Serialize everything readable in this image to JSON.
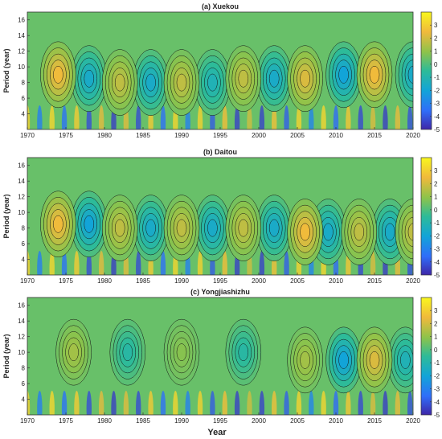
{
  "chart_data": {
    "type": "heatmap",
    "xlabel": "Year",
    "ylabel": "Period (year)",
    "xlim": [
      1970,
      2020
    ],
    "ylim": [
      2,
      17
    ],
    "x_ticks": [
      "1970",
      "1975",
      "1980",
      "1985",
      "1990",
      "1995",
      "2000",
      "2005",
      "2010",
      "2015",
      "2020"
    ],
    "y_ticks": [
      "4",
      "6",
      "8",
      "10",
      "12",
      "14",
      "16"
    ],
    "colorbar": {
      "range": [
        -5,
        4
      ],
      "ticks": [
        "3",
        "2",
        "1",
        "0",
        "-1",
        "-2",
        "-3",
        "-4",
        "-5"
      ],
      "colormap": [
        "#3e26a8",
        "#2f6ef9",
        "#12a4d8",
        "#2ebb98",
        "#8ec34a",
        "#f0b93c",
        "#f9f71e"
      ]
    },
    "contours": "black",
    "panels": [
      {
        "title": "(a) Xuekou",
        "high_centers": [
          {
            "year": 1974,
            "period": 9,
            "value": 3
          },
          {
            "year": 1982,
            "period": 8,
            "value": 2
          },
          {
            "year": 1990,
            "period": 8,
            "value": 2
          },
          {
            "year": 1998,
            "period": 8.5,
            "value": 2
          },
          {
            "year": 2006,
            "period": 8.5,
            "value": 2.5
          },
          {
            "year": 2015,
            "period": 9,
            "value": 3
          }
        ],
        "low_centers": [
          {
            "year": 1978,
            "period": 8.5,
            "value": -2
          },
          {
            "year": 1986,
            "period": 8,
            "value": -2
          },
          {
            "year": 1994,
            "period": 8,
            "value": -1.5
          },
          {
            "year": 2002,
            "period": 8.5,
            "value": -2
          },
          {
            "year": 2011,
            "period": 9,
            "value": -2.5
          },
          {
            "year": 2020,
            "period": 9,
            "value": -2
          }
        ]
      },
      {
        "title": "(b) Daitou",
        "high_centers": [
          {
            "year": 1974,
            "period": 8.5,
            "value": 3
          },
          {
            "year": 1982,
            "period": 8,
            "value": 2
          },
          {
            "year": 1990,
            "period": 8,
            "value": 2
          },
          {
            "year": 1998,
            "period": 8,
            "value": 2
          },
          {
            "year": 2006,
            "period": 7.5,
            "value": 3
          },
          {
            "year": 2013,
            "period": 7.5,
            "value": 2
          },
          {
            "year": 2020,
            "period": 7.5,
            "value": 2
          }
        ],
        "low_centers": [
          {
            "year": 1978,
            "period": 8.5,
            "value": -2.5
          },
          {
            "year": 1986,
            "period": 8,
            "value": -2
          },
          {
            "year": 1994,
            "period": 8,
            "value": -2
          },
          {
            "year": 2002,
            "period": 8,
            "value": -2
          },
          {
            "year": 2009,
            "period": 7.5,
            "value": -2
          },
          {
            "year": 2017,
            "period": 7.5,
            "value": -2
          }
        ]
      },
      {
        "title": "(c) Yongjiashizhu",
        "high_centers": [
          {
            "year": 1976,
            "period": 10,
            "value": 1.5
          },
          {
            "year": 1990,
            "period": 10,
            "value": 1
          },
          {
            "year": 2006,
            "period": 9,
            "value": 1.5
          },
          {
            "year": 2015,
            "period": 9,
            "value": 2.5
          }
        ],
        "low_centers": [
          {
            "year": 1983,
            "period": 10,
            "value": -1
          },
          {
            "year": 1998,
            "period": 10,
            "value": -1
          },
          {
            "year": 2011,
            "period": 9,
            "value": -2.5
          },
          {
            "year": 2019,
            "period": 9,
            "value": -1.5
          }
        ]
      }
    ]
  }
}
